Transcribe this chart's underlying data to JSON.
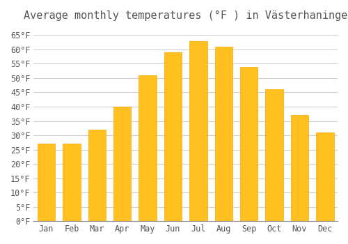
{
  "title": "Average monthly temperatures (°F ) in Västerhaninge",
  "months": [
    "Jan",
    "Feb",
    "Mar",
    "Apr",
    "May",
    "Jun",
    "Jul",
    "Aug",
    "Sep",
    "Oct",
    "Nov",
    "Dec"
  ],
  "values": [
    27,
    27,
    32,
    40,
    51,
    59,
    63,
    61,
    54,
    46,
    37,
    31
  ],
  "bar_color": "#FFC020",
  "bar_edge_color": "#FFA500",
  "background_color": "#FFFFFF",
  "grid_color": "#CCCCCC",
  "text_color": "#555555",
  "yticks": [
    0,
    5,
    10,
    15,
    20,
    25,
    30,
    35,
    40,
    45,
    50,
    55,
    60,
    65
  ],
  "ylim": [
    0,
    68
  ],
  "title_fontsize": 11,
  "tick_fontsize": 8.5
}
